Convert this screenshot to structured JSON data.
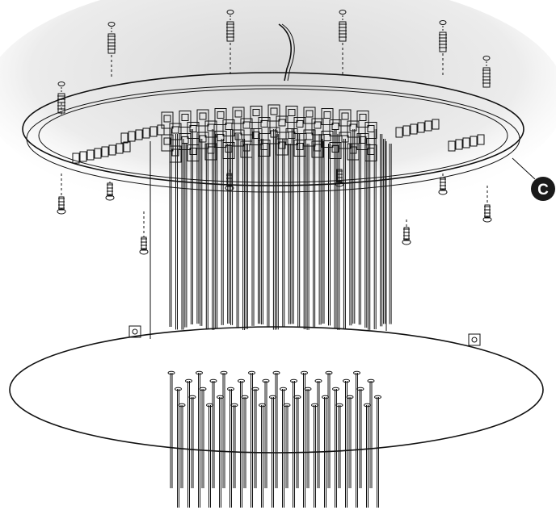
{
  "diagram": {
    "callouts": [
      {
        "id": "c",
        "label": "C"
      }
    ],
    "parts": [
      "ceiling-plate",
      "mounting-screw",
      "wire-cable",
      "led-module",
      "canopy-disc",
      "hanging-rod"
    ],
    "colors": {
      "line": "#111111",
      "shadow": "#e6e6e6",
      "callout_fill": "#1a1a1a",
      "callout_text": "#ffffff"
    }
  }
}
